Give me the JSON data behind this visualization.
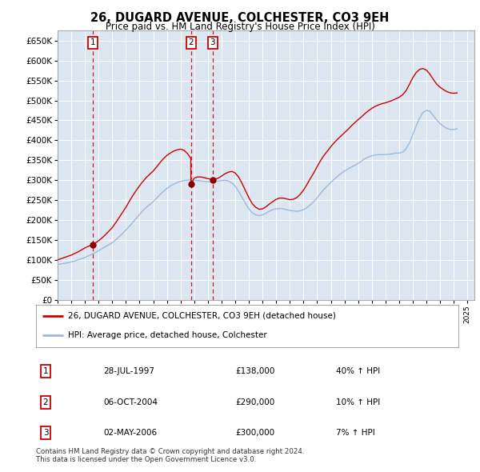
{
  "title": "26, DUGARD AVENUE, COLCHESTER, CO3 9EH",
  "subtitle": "Price paid vs. HM Land Registry's House Price Index (HPI)",
  "background_color": "#ffffff",
  "plot_bg_color": "#dce6f1",
  "grid_color": "#ffffff",
  "ylim": [
    0,
    675000
  ],
  "yticks": [
    0,
    50000,
    100000,
    150000,
    200000,
    250000,
    300000,
    350000,
    400000,
    450000,
    500000,
    550000,
    600000,
    650000
  ],
  "ytick_labels": [
    "£0",
    "£50K",
    "£100K",
    "£150K",
    "£200K",
    "£250K",
    "£300K",
    "£350K",
    "£400K",
    "£450K",
    "£500K",
    "£550K",
    "£600K",
    "£650K"
  ],
  "sale_dates": [
    1997.57,
    2004.76,
    2006.34
  ],
  "sale_prices": [
    138000,
    290000,
    300000
  ],
  "sale_labels": [
    "1",
    "2",
    "3"
  ],
  "red_line_color": "#cc0000",
  "blue_line_color": "#99bbdd",
  "sale_dot_color": "#880000",
  "vline_color": "#cc0000",
  "footer_text": "Contains HM Land Registry data © Crown copyright and database right 2024.\nThis data is licensed under the Open Government Licence v3.0.",
  "table_data": [
    [
      "1",
      "28-JUL-1997",
      "£138,000",
      "40% ↑ HPI"
    ],
    [
      "2",
      "06-OCT-2004",
      "£290,000",
      "10% ↑ HPI"
    ],
    [
      "3",
      "02-MAY-2006",
      "£300,000",
      "7% ↑ HPI"
    ]
  ],
  "hpi_x": [
    1995.0,
    1995.25,
    1995.5,
    1995.75,
    1996.0,
    1996.25,
    1996.5,
    1996.75,
    1997.0,
    1997.25,
    1997.5,
    1997.75,
    1998.0,
    1998.25,
    1998.5,
    1998.75,
    1999.0,
    1999.25,
    1999.5,
    1999.75,
    2000.0,
    2000.25,
    2000.5,
    2000.75,
    2001.0,
    2001.25,
    2001.5,
    2001.75,
    2002.0,
    2002.25,
    2002.5,
    2002.75,
    2003.0,
    2003.25,
    2003.5,
    2003.75,
    2004.0,
    2004.25,
    2004.5,
    2004.75,
    2005.0,
    2005.25,
    2005.5,
    2005.75,
    2006.0,
    2006.25,
    2006.5,
    2006.75,
    2007.0,
    2007.25,
    2007.5,
    2007.75,
    2008.0,
    2008.25,
    2008.5,
    2008.75,
    2009.0,
    2009.25,
    2009.5,
    2009.75,
    2010.0,
    2010.25,
    2010.5,
    2010.75,
    2011.0,
    2011.25,
    2011.5,
    2011.75,
    2012.0,
    2012.25,
    2012.5,
    2012.75,
    2013.0,
    2013.25,
    2013.5,
    2013.75,
    2014.0,
    2014.25,
    2014.5,
    2014.75,
    2015.0,
    2015.25,
    2015.5,
    2015.75,
    2016.0,
    2016.25,
    2016.5,
    2016.75,
    2017.0,
    2017.25,
    2017.5,
    2017.75,
    2018.0,
    2018.25,
    2018.5,
    2018.75,
    2019.0,
    2019.25,
    2019.5,
    2019.75,
    2020.0,
    2020.25,
    2020.5,
    2020.75,
    2021.0,
    2021.25,
    2021.5,
    2021.75,
    2022.0,
    2022.25,
    2022.5,
    2022.75,
    2023.0,
    2023.25,
    2023.5,
    2023.75,
    2024.0,
    2024.25
  ],
  "hpi_y": [
    88000,
    90000,
    91000,
    93000,
    95000,
    97000,
    100000,
    103000,
    106000,
    110000,
    114000,
    118000,
    123000,
    128000,
    133000,
    138000,
    143000,
    150000,
    158000,
    166000,
    175000,
    184000,
    194000,
    204000,
    214000,
    224000,
    232000,
    239000,
    246000,
    255000,
    264000,
    272000,
    279000,
    285000,
    290000,
    294000,
    297000,
    299000,
    300000,
    301000,
    300000,
    299000,
    298000,
    297000,
    296000,
    296000,
    297000,
    298000,
    299000,
    300000,
    298000,
    293000,
    285000,
    272000,
    257000,
    242000,
    228000,
    218000,
    213000,
    211000,
    213000,
    217000,
    222000,
    226000,
    228000,
    229000,
    228000,
    226000,
    224000,
    223000,
    222000,
    223000,
    226000,
    231000,
    238000,
    246000,
    256000,
    267000,
    277000,
    286000,
    294000,
    302000,
    310000,
    317000,
    323000,
    328000,
    333000,
    337000,
    342000,
    348000,
    354000,
    358000,
    361000,
    363000,
    364000,
    364000,
    364000,
    365000,
    366000,
    368000,
    368000,
    370000,
    378000,
    393000,
    414000,
    436000,
    456000,
    470000,
    475000,
    473000,
    462000,
    451000,
    442000,
    435000,
    430000,
    427000,
    427000,
    429000
  ],
  "red_x": [
    1995.0,
    1995.25,
    1995.5,
    1995.75,
    1996.0,
    1996.25,
    1996.5,
    1996.75,
    1997.0,
    1997.25,
    1997.5,
    1997.57,
    1997.75,
    1998.0,
    1998.25,
    1998.5,
    1998.75,
    1999.0,
    1999.25,
    1999.5,
    1999.75,
    2000.0,
    2000.25,
    2000.5,
    2000.75,
    2001.0,
    2001.25,
    2001.5,
    2001.75,
    2002.0,
    2002.25,
    2002.5,
    2002.75,
    2003.0,
    2003.25,
    2003.5,
    2003.75,
    2004.0,
    2004.25,
    2004.5,
    2004.75,
    2004.76,
    2005.0,
    2005.25,
    2005.5,
    2005.75,
    2006.0,
    2006.25,
    2006.34,
    2006.5,
    2006.75,
    2007.0,
    2007.25,
    2007.5,
    2007.75,
    2008.0,
    2008.25,
    2008.5,
    2008.75,
    2009.0,
    2009.25,
    2009.5,
    2009.75,
    2010.0,
    2010.25,
    2010.5,
    2010.75,
    2011.0,
    2011.25,
    2011.5,
    2011.75,
    2012.0,
    2012.25,
    2012.5,
    2012.75,
    2013.0,
    2013.25,
    2013.5,
    2013.75,
    2014.0,
    2014.25,
    2014.5,
    2014.75,
    2015.0,
    2015.25,
    2015.5,
    2015.75,
    2016.0,
    2016.25,
    2016.5,
    2016.75,
    2017.0,
    2017.25,
    2017.5,
    2017.75,
    2018.0,
    2018.25,
    2018.5,
    2018.75,
    2019.0,
    2019.25,
    2019.5,
    2019.75,
    2020.0,
    2020.25,
    2020.5,
    2020.75,
    2021.0,
    2021.25,
    2021.5,
    2021.75,
    2022.0,
    2022.25,
    2022.5,
    2022.75,
    2023.0,
    2023.25,
    2023.5,
    2023.75,
    2024.0,
    2024.25
  ],
  "red_y": [
    100000,
    103000,
    106000,
    109000,
    112000,
    116000,
    120000,
    125000,
    130000,
    134000,
    137000,
    138000,
    142000,
    148000,
    155000,
    163000,
    172000,
    181000,
    193000,
    206000,
    219000,
    232000,
    247000,
    261000,
    274000,
    286000,
    297000,
    307000,
    315000,
    323000,
    333000,
    344000,
    354000,
    362000,
    368000,
    373000,
    376000,
    378000,
    375000,
    367000,
    355000,
    290000,
    305000,
    308000,
    308000,
    306000,
    304000,
    302000,
    300000,
    302000,
    305000,
    310000,
    316000,
    320000,
    322000,
    318000,
    308000,
    292000,
    274000,
    256000,
    241000,
    232000,
    227000,
    228000,
    233000,
    240000,
    246000,
    252000,
    255000,
    255000,
    253000,
    251000,
    252000,
    256000,
    264000,
    275000,
    289000,
    304000,
    318000,
    334000,
    349000,
    362000,
    373000,
    384000,
    394000,
    403000,
    411000,
    419000,
    427000,
    436000,
    444000,
    452000,
    459000,
    467000,
    474000,
    480000,
    485000,
    489000,
    492000,
    494000,
    497000,
    500000,
    504000,
    508000,
    514000,
    524000,
    540000,
    557000,
    570000,
    578000,
    580000,
    576000,
    566000,
    553000,
    541000,
    533000,
    527000,
    522000,
    519000,
    518000,
    519000
  ]
}
